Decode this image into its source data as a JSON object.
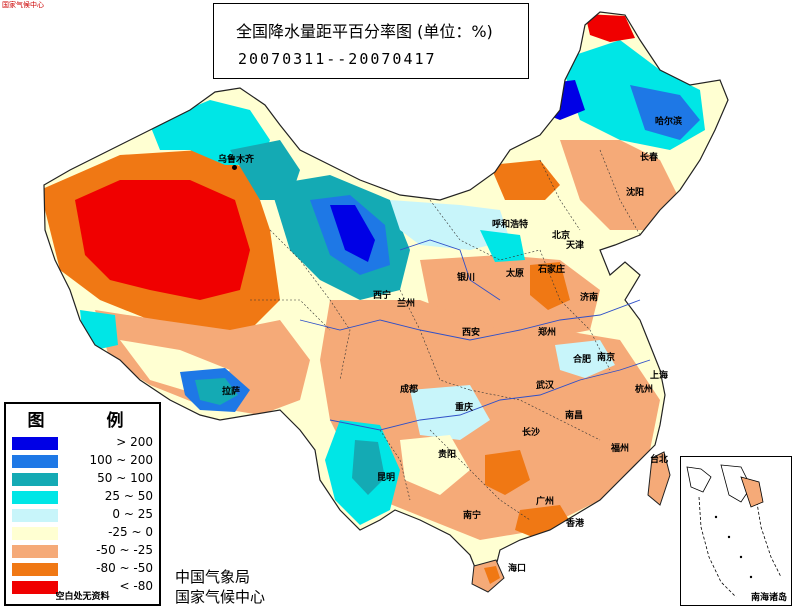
{
  "title": {
    "main": "全国降水量距平百分率图 (单位：%)",
    "dates": "20070311--20070417"
  },
  "legend": {
    "title": "图 例",
    "items": [
      {
        "label": "> 200",
        "color": "#0000e6"
      },
      {
        "label": "100 ~ 200",
        "color": "#1e78e6"
      },
      {
        "label": "50 ~ 100",
        "color": "#14aab4"
      },
      {
        "label": "25 ~ 50",
        "color": "#00e6e6"
      },
      {
        "label": "0 ~ 25",
        "color": "#c8f5fa"
      },
      {
        "label": "-25 ~ 0",
        "color": "#ffffd2"
      },
      {
        "label": "-50 ~ -25",
        "color": "#f5aa78"
      },
      {
        "label": "-80 ~ -50",
        "color": "#f07814"
      },
      {
        "label": "< -80",
        "color": "#f00000"
      }
    ],
    "footnote": "空白处无资料"
  },
  "agency": {
    "line1": "中国气象局",
    "line2": "国家气候中心"
  },
  "inset": {
    "label": "南海诸岛"
  },
  "cities": [
    {
      "name": "乌鲁木齐"
    },
    {
      "name": "哈尔滨"
    },
    {
      "name": "长春"
    },
    {
      "name": "沈阳"
    },
    {
      "name": "呼和浩特"
    },
    {
      "name": "北京"
    },
    {
      "name": "天津"
    },
    {
      "name": "石家庄"
    },
    {
      "name": "太原"
    },
    {
      "name": "济南"
    },
    {
      "name": "银川"
    },
    {
      "name": "西宁"
    },
    {
      "name": "兰州"
    },
    {
      "name": "西安"
    },
    {
      "name": "郑州"
    },
    {
      "name": "合肥"
    },
    {
      "name": "南京"
    },
    {
      "name": "上海"
    },
    {
      "name": "拉萨"
    },
    {
      "name": "成都"
    },
    {
      "name": "重庆"
    },
    {
      "name": "武汉"
    },
    {
      "name": "杭州"
    },
    {
      "name": "南昌"
    },
    {
      "name": "长沙"
    },
    {
      "name": "贵阳"
    },
    {
      "name": "福州"
    },
    {
      "name": "台北"
    },
    {
      "name": "昆明"
    },
    {
      "name": "南宁"
    },
    {
      "name": "广州"
    },
    {
      "name": "香港"
    },
    {
      "name": "海口"
    }
  ],
  "corner_text": "国家气候中心"
}
